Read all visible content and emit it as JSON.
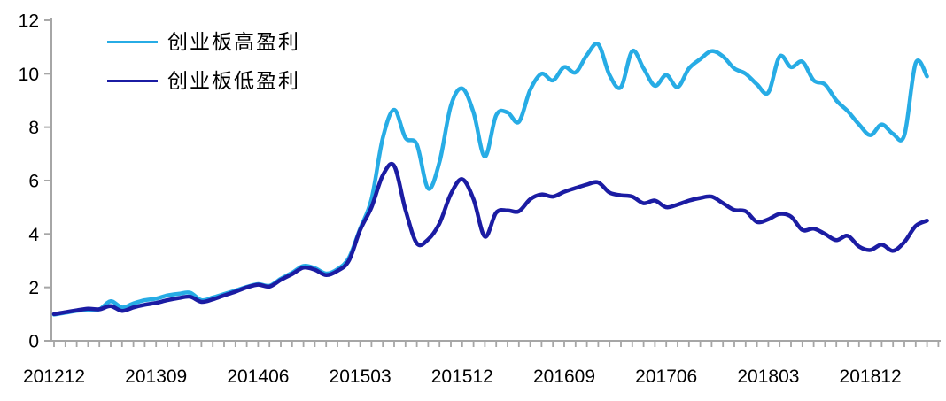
{
  "chart_data": {
    "type": "line",
    "title": "",
    "xlabel": "",
    "ylabel": "",
    "ylim": [
      0,
      12
    ],
    "yticks": [
      0,
      2,
      4,
      6,
      8,
      10,
      12
    ],
    "xtick_labels": [
      "201212",
      "201309",
      "201406",
      "201503",
      "201512",
      "201609",
      "201706",
      "201803",
      "201812"
    ],
    "grid": false,
    "legend_position": "top-left",
    "axis_color": "#A6A6A6",
    "text_color": "#000000",
    "x": [
      "201212",
      "201301",
      "201302",
      "201303",
      "201304",
      "201305",
      "201306",
      "201307",
      "201308",
      "201309",
      "201310",
      "201311",
      "201312",
      "201401",
      "201402",
      "201403",
      "201404",
      "201405",
      "201406",
      "201407",
      "201408",
      "201409",
      "201410",
      "201411",
      "201412",
      "201501",
      "201502",
      "201503",
      "201504",
      "201505",
      "201506",
      "201507",
      "201508",
      "201509",
      "201510",
      "201511",
      "201512",
      "201601",
      "201602",
      "201603",
      "201604",
      "201605",
      "201606",
      "201607",
      "201608",
      "201609",
      "201610",
      "201611",
      "201612",
      "201701",
      "201702",
      "201703",
      "201704",
      "201705",
      "201706",
      "201707",
      "201708",
      "201709",
      "201710",
      "201711",
      "201712",
      "201801",
      "201802",
      "201803",
      "201804",
      "201805",
      "201806",
      "201807",
      "201808",
      "201809",
      "201810",
      "201811",
      "201812",
      "201901",
      "201902",
      "201903",
      "201904",
      "201905"
    ],
    "series": [
      {
        "name": "创业板高盈利",
        "color": "#27ACE5",
        "values": [
          0.98,
          1.05,
          1.12,
          1.16,
          1.18,
          1.48,
          1.25,
          1.4,
          1.52,
          1.58,
          1.7,
          1.76,
          1.8,
          1.52,
          1.62,
          1.75,
          1.88,
          2.02,
          2.12,
          2.06,
          2.32,
          2.55,
          2.8,
          2.72,
          2.52,
          2.68,
          3.1,
          4.2,
          5.3,
          7.6,
          8.65,
          7.6,
          7.35,
          5.7,
          6.7,
          8.8,
          9.45,
          8.55,
          6.9,
          8.45,
          8.55,
          8.2,
          9.4,
          10.0,
          9.75,
          10.25,
          10.05,
          10.7,
          11.1,
          9.95,
          9.5,
          10.85,
          10.2,
          9.55,
          9.95,
          9.5,
          10.2,
          10.55,
          10.85,
          10.65,
          10.2,
          10.0,
          9.6,
          9.3,
          10.65,
          10.25,
          10.45,
          9.75,
          9.6,
          9.0,
          8.6,
          8.1,
          7.7,
          8.1,
          7.75,
          7.7,
          10.4,
          9.9
        ]
      },
      {
        "name": "创业板低盈利",
        "color": "#1B1CA3",
        "values": [
          1.0,
          1.07,
          1.14,
          1.2,
          1.18,
          1.3,
          1.12,
          1.25,
          1.35,
          1.42,
          1.52,
          1.6,
          1.65,
          1.46,
          1.55,
          1.7,
          1.84,
          2.0,
          2.1,
          2.03,
          2.28,
          2.5,
          2.74,
          2.66,
          2.46,
          2.62,
          3.0,
          4.15,
          5.0,
          6.2,
          6.55,
          4.9,
          3.65,
          3.8,
          4.4,
          5.5,
          6.05,
          5.3,
          3.9,
          4.8,
          4.88,
          4.85,
          5.3,
          5.48,
          5.4,
          5.58,
          5.72,
          5.85,
          5.93,
          5.55,
          5.45,
          5.4,
          5.15,
          5.25,
          5.0,
          5.1,
          5.25,
          5.35,
          5.4,
          5.15,
          4.9,
          4.85,
          4.45,
          4.55,
          4.75,
          4.65,
          4.15,
          4.2,
          4.0,
          3.77,
          3.93,
          3.53,
          3.4,
          3.6,
          3.37,
          3.7,
          4.3,
          4.5
        ]
      }
    ]
  }
}
